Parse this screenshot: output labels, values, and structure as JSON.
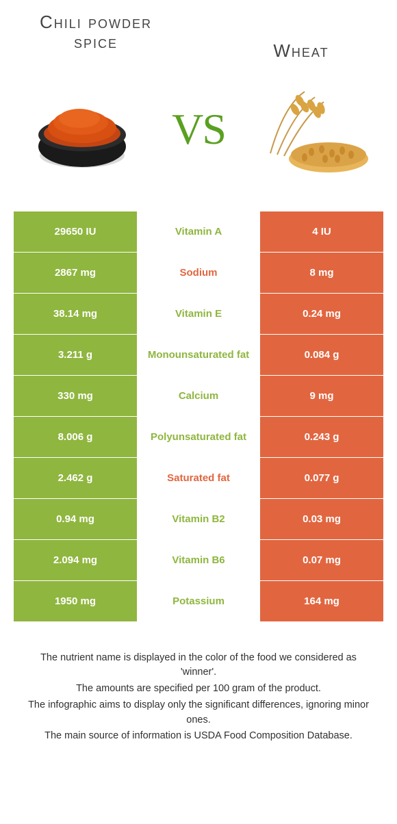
{
  "colors": {
    "left_food": "#8fb63f",
    "right_food": "#e16640",
    "vs": "#5aa021",
    "text_mid_default": "#333333"
  },
  "left_title": "Chili powder spice",
  "right_title": "Wheat",
  "vs_label": "VS",
  "rows": [
    {
      "left": "29650 IU",
      "mid": "Vitamin A",
      "right": "4 IU",
      "winner": "left"
    },
    {
      "left": "2867 mg",
      "mid": "Sodium",
      "right": "8 mg",
      "winner": "right"
    },
    {
      "left": "38.14 mg",
      "mid": "Vitamin E",
      "right": "0.24 mg",
      "winner": "left"
    },
    {
      "left": "3.211 g",
      "mid": "Monounsaturated fat",
      "right": "0.084 g",
      "winner": "left"
    },
    {
      "left": "330 mg",
      "mid": "Calcium",
      "right": "9 mg",
      "winner": "left"
    },
    {
      "left": "8.006 g",
      "mid": "Polyunsaturated fat",
      "right": "0.243 g",
      "winner": "left"
    },
    {
      "left": "2.462 g",
      "mid": "Saturated fat",
      "right": "0.077 g",
      "winner": "right"
    },
    {
      "left": "0.94 mg",
      "mid": "Vitamin B2",
      "right": "0.03 mg",
      "winner": "left"
    },
    {
      "left": "2.094 mg",
      "mid": "Vitamin B6",
      "right": "0.07 mg",
      "winner": "left"
    },
    {
      "left": "1950 mg",
      "mid": "Potassium",
      "right": "164 mg",
      "winner": "left"
    }
  ],
  "footer": [
    "The nutrient name is displayed in the color of the food we considered as 'winner'.",
    "The amounts are specified per 100 gram of the product.",
    "The infographic aims to display only the significant differences, ignoring minor ones.",
    "The main source of information is USDA Food Composition Database."
  ]
}
